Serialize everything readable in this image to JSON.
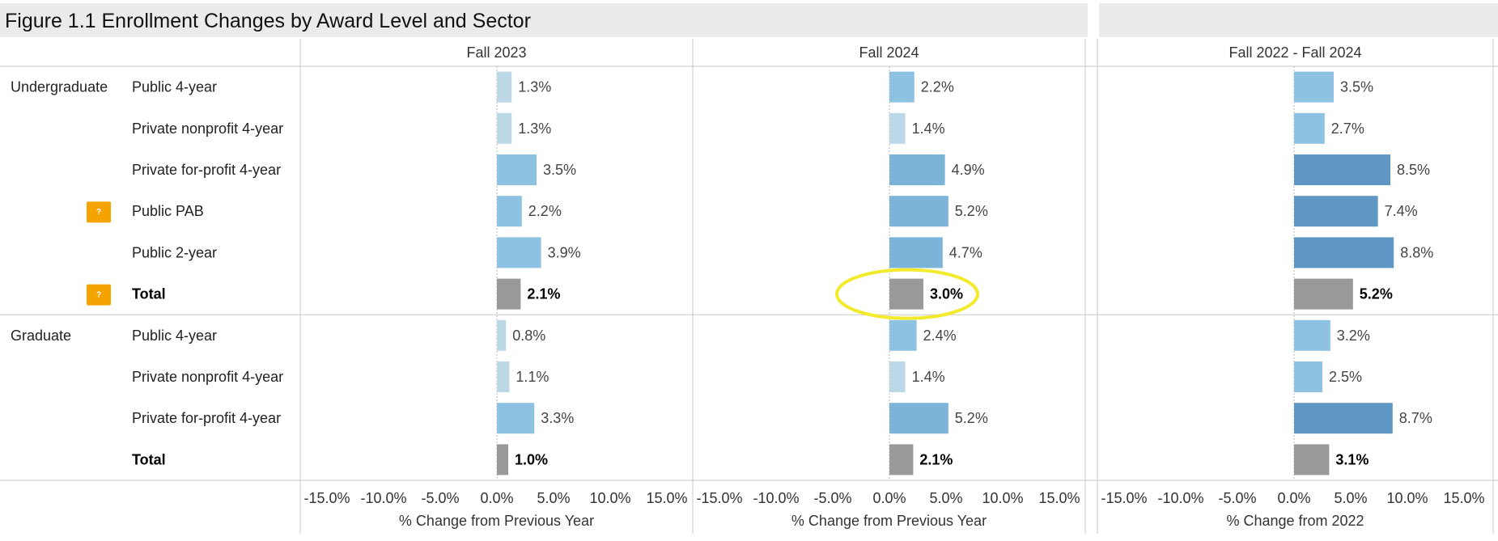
{
  "title": "Figure 1.1 Enrollment Changes by Award Level and Sector",
  "chart_data": {
    "type": "bar",
    "orientation": "horizontal",
    "title": "Figure 1.1 Enrollment Changes by Award Level and Sector",
    "row_groups": [
      {
        "name": "Undergraduate",
        "rows": [
          {
            "label": "Public 4-year",
            "total": false,
            "info_icon": false
          },
          {
            "label": "Private nonprofit 4-year",
            "total": false,
            "info_icon": false
          },
          {
            "label": "Private for-profit 4-year",
            "total": false,
            "info_icon": false
          },
          {
            "label": "Public PAB",
            "total": false,
            "info_icon": true
          },
          {
            "label": "Public 2-year",
            "total": false,
            "info_icon": false
          },
          {
            "label": "Total",
            "total": true,
            "info_icon": true
          }
        ]
      },
      {
        "name": "Graduate",
        "rows": [
          {
            "label": "Public 4-year",
            "total": false,
            "info_icon": false
          },
          {
            "label": "Private nonprofit 4-year",
            "total": false,
            "info_icon": false
          },
          {
            "label": "Private for-profit 4-year",
            "total": false,
            "info_icon": false
          },
          {
            "label": "Total",
            "total": true,
            "info_icon": false
          }
        ]
      }
    ],
    "panels": [
      {
        "header": "Fall 2023",
        "xlabel": "% Change from Previous Year",
        "values": [
          1.3,
          1.3,
          3.5,
          2.2,
          3.9,
          2.1,
          0.8,
          1.1,
          3.3,
          1.0
        ],
        "labels": [
          "1.3%",
          "1.3%",
          "3.5%",
          "2.2%",
          "3.9%",
          "2.1%",
          "0.8%",
          "1.1%",
          "3.3%",
          "1.0%"
        ]
      },
      {
        "header": "Fall 2024",
        "xlabel": "% Change from Previous Year",
        "values": [
          2.2,
          1.4,
          4.9,
          5.2,
          4.7,
          3.0,
          2.4,
          1.4,
          5.2,
          2.1
        ],
        "labels": [
          "2.2%",
          "1.4%",
          "4.9%",
          "5.2%",
          "4.7%",
          "3.0%",
          "2.4%",
          "1.4%",
          "5.2%",
          "2.1%"
        ],
        "highlight_row": 5
      },
      {
        "header": "Fall 2022 - Fall 2024",
        "xlabel": "% Change from 2022",
        "values": [
          3.5,
          2.7,
          8.5,
          7.4,
          8.8,
          5.2,
          3.2,
          2.5,
          8.7,
          3.1
        ],
        "labels": [
          "3.5%",
          "2.7%",
          "8.5%",
          "7.4%",
          "8.8%",
          "5.2%",
          "3.2%",
          "2.5%",
          "8.7%",
          "3.1%"
        ]
      }
    ],
    "xlim": [
      -15,
      15
    ],
    "xticks": [
      -15,
      -10,
      -5,
      0,
      5,
      10,
      15
    ],
    "xtick_labels": [
      "-15.0%",
      "-10.0%",
      "-5.0%",
      "0.0%",
      "5.0%",
      "10.0%",
      "15.0%"
    ],
    "colors": {
      "total": "#999999",
      "light": "#bcd7e6",
      "mid": "#8ec2e2",
      "dark": "#5e96c4",
      "highlight": "#f2ea2b"
    },
    "grid": false
  }
}
